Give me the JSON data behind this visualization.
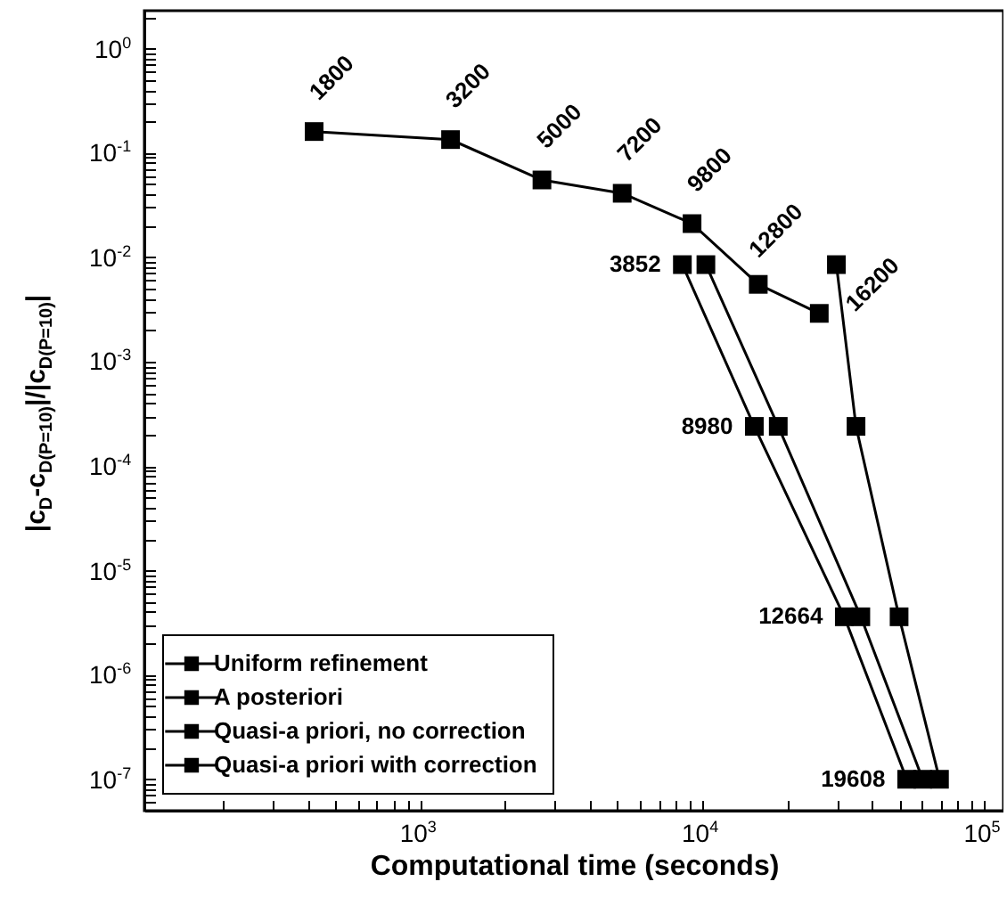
{
  "chart_data": {
    "type": "line",
    "xlabel": "Computational time (seconds)",
    "ylabel": "|c$_{D}$-c$_{D(P=10)}$|/|c$_{D(P=10)}$|",
    "log": "xy",
    "grid": false,
    "legend": "bottom left",
    "marker": "square",
    "line_style": "solid",
    "xlim": [
      105,
      117000
    ],
    "ylim": [
      5e-08,
      2.3
    ],
    "xticks": [
      {
        "value": 200,
        "label": null
      },
      {
        "value": 300,
        "label": null
      },
      {
        "value": 400,
        "label": null
      },
      {
        "value": 500,
        "label": null
      },
      {
        "value": 600,
        "label": null
      },
      {
        "value": 700,
        "label": null
      },
      {
        "value": 800,
        "label": null
      },
      {
        "value": 900,
        "label": null
      },
      {
        "value": 1000,
        "label": "10$^{3}$"
      },
      {
        "value": 2000,
        "label": null
      },
      {
        "value": 3000,
        "label": null
      },
      {
        "value": 4000,
        "label": null
      },
      {
        "value": 5000,
        "label": null
      },
      {
        "value": 6000,
        "label": null
      },
      {
        "value": 7000,
        "label": null
      },
      {
        "value": 8000,
        "label": null
      },
      {
        "value": 9000,
        "label": null
      },
      {
        "value": 10000,
        "label": "10$^{4}$"
      },
      {
        "value": 20000,
        "label": null
      },
      {
        "value": 30000,
        "label": null
      },
      {
        "value": 40000,
        "label": null
      },
      {
        "value": 50000,
        "label": null
      },
      {
        "value": 60000,
        "label": null
      },
      {
        "value": 70000,
        "label": null
      },
      {
        "value": 80000,
        "label": null
      },
      {
        "value": 90000,
        "label": null
      },
      {
        "value": 100000,
        "label": "10$^{5}$"
      }
    ],
    "yticks": [
      {
        "value": 6e-08,
        "label": null
      },
      {
        "value": 7e-08,
        "label": null
      },
      {
        "value": 8e-08,
        "label": null
      },
      {
        "value": 9e-08,
        "label": null
      },
      {
        "value": 1e-07,
        "label": "10$^{-7}$"
      },
      {
        "value": 2e-07,
        "label": null
      },
      {
        "value": 3e-07,
        "label": null
      },
      {
        "value": 4e-07,
        "label": null
      },
      {
        "value": 5e-07,
        "label": null
      },
      {
        "value": 6e-07,
        "label": null
      },
      {
        "value": 7e-07,
        "label": null
      },
      {
        "value": 8e-07,
        "label": null
      },
      {
        "value": 9e-07,
        "label": null
      },
      {
        "value": 1e-06,
        "label": "10$^{-6}$"
      },
      {
        "value": 2e-06,
        "label": null
      },
      {
        "value": 3e-06,
        "label": null
      },
      {
        "value": 4e-06,
        "label": null
      },
      {
        "value": 5e-06,
        "label": null
      },
      {
        "value": 6e-06,
        "label": null
      },
      {
        "value": 7e-06,
        "label": null
      },
      {
        "value": 8e-06,
        "label": null
      },
      {
        "value": 9e-06,
        "label": null
      },
      {
        "value": 1e-05,
        "label": "10$^{-5}$"
      },
      {
        "value": 2e-05,
        "label": null
      },
      {
        "value": 3e-05,
        "label": null
      },
      {
        "value": 4e-05,
        "label": null
      },
      {
        "value": 5e-05,
        "label": null
      },
      {
        "value": 6e-05,
        "label": null
      },
      {
        "value": 7e-05,
        "label": null
      },
      {
        "value": 8e-05,
        "label": null
      },
      {
        "value": 9e-05,
        "label": null
      },
      {
        "value": 0.0001,
        "label": "10$^{-4}$"
      },
      {
        "value": 0.0002,
        "label": null
      },
      {
        "value": 0.0003,
        "label": null
      },
      {
        "value": 0.0004,
        "label": null
      },
      {
        "value": 0.0005,
        "label": null
      },
      {
        "value": 0.0006,
        "label": null
      },
      {
        "value": 0.0007,
        "label": null
      },
      {
        "value": 0.0008,
        "label": null
      },
      {
        "value": 0.0009,
        "label": null
      },
      {
        "value": 0.001,
        "label": "10$^{-3}$"
      },
      {
        "value": 0.002,
        "label": null
      },
      {
        "value": 0.003,
        "label": null
      },
      {
        "value": 0.004,
        "label": null
      },
      {
        "value": 0.005,
        "label": null
      },
      {
        "value": 0.006,
        "label": null
      },
      {
        "value": 0.007,
        "label": null
      },
      {
        "value": 0.008,
        "label": null
      },
      {
        "value": 0.009,
        "label": null
      },
      {
        "value": 0.01,
        "label": "10$^{-2}$"
      },
      {
        "value": 0.02,
        "label": null
      },
      {
        "value": 0.03,
        "label": null
      },
      {
        "value": 0.04,
        "label": null
      },
      {
        "value": 0.05,
        "label": null
      },
      {
        "value": 0.06,
        "label": null
      },
      {
        "value": 0.07,
        "label": null
      },
      {
        "value": 0.08,
        "label": null
      },
      {
        "value": 0.09,
        "label": null
      },
      {
        "value": 0.1,
        "label": "10$^{-1}$"
      },
      {
        "value": 0.2,
        "label": null
      },
      {
        "value": 0.3,
        "label": null
      },
      {
        "value": 0.4,
        "label": null
      },
      {
        "value": 0.5,
        "label": null
      },
      {
        "value": 0.6,
        "label": null
      },
      {
        "value": 0.7,
        "label": null
      },
      {
        "value": 0.8,
        "label": null
      },
      {
        "value": 0.9,
        "label": null
      },
      {
        "value": 1,
        "label": "10$^{0}$"
      },
      {
        "value": 2,
        "label": null
      }
    ],
    "series": [
      {
        "name": "Uniform refinement",
        "color": "#000000",
        "x": [
          420,
          1280,
          2700,
          5200,
          9200,
          15800,
          26000
        ],
        "values": [
          0.16,
          0.134,
          0.055,
          0.041,
          0.021,
          0.0055,
          0.0029
        ]
      },
      {
        "name": "A posteriori",
        "color": "#000000",
        "x": [
          29900,
          35100,
          49900,
          69400
        ],
        "values": [
          0.0085,
          0.00024,
          3.6e-06,
          1e-07
        ]
      },
      {
        "name": "Quasi-a priori, no correction",
        "color": "#000000",
        "x": [
          10300,
          18600,
          36500,
          60500
        ],
        "values": [
          0.0085,
          0.00024,
          3.6e-06,
          1e-07
        ]
      },
      {
        "name": "Quasi-a priori with correction",
        "color": "#000000",
        "x": [
          8500,
          15300,
          31900,
          53100
        ],
        "values": [
          0.0085,
          0.00024,
          3.6e-06,
          1e-07
        ]
      }
    ],
    "annotations": [
      {
        "text": "1800",
        "x": 420,
        "y": 0.16
      },
      {
        "text": "3200",
        "x": 1280,
        "y": 0.134
      },
      {
        "text": "5000",
        "x": 2700,
        "y": 0.055
      },
      {
        "text": "7200",
        "x": 5200,
        "y": 0.041
      },
      {
        "text": "9800",
        "x": 9200,
        "y": 0.021
      },
      {
        "text": "12800",
        "x": 15800,
        "y": 0.0055
      },
      {
        "text": "16200",
        "x": 26000,
        "y": 0.0029
      },
      {
        "text": "3852",
        "x": 8500,
        "y": 0.0085
      },
      {
        "text": "8980",
        "x": 15300,
        "y": 0.00024
      },
      {
        "text": "12664",
        "x": 31900,
        "y": 3.6e-06
      },
      {
        "text": "19608",
        "x": 53100,
        "y": 1e-07
      }
    ]
  }
}
